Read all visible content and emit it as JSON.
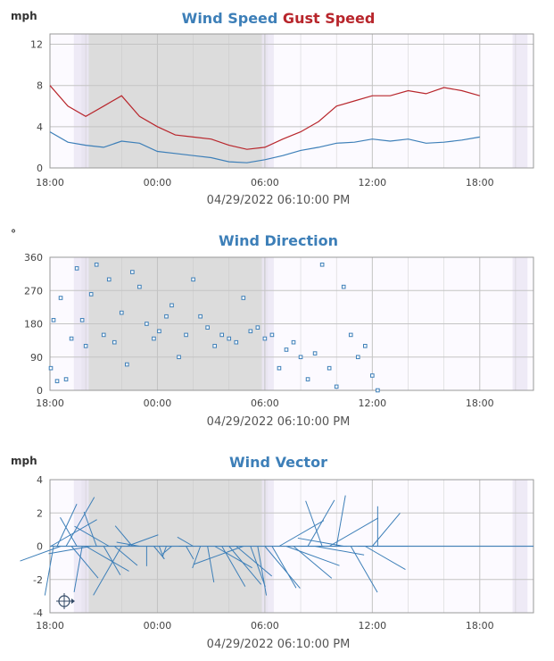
{
  "colors": {
    "wind": "#3d7fb8",
    "gust": "#b8262c",
    "night_fill": "#dcdcdc",
    "twilight": "#ebe6f5",
    "day_fill": "#fcfaff",
    "grid": "#c4c4c4",
    "axis_line": "#999999"
  },
  "x_axis": {
    "ticks": [
      "18:00",
      "00:00",
      "06:00",
      "12:00",
      "18:00"
    ],
    "tick_hours": [
      0,
      6,
      12,
      18,
      24
    ],
    "start": "04/28/2022 18:00",
    "end": "04/29/2022 21:00",
    "night": [
      "04/28/2022 19:45",
      "04/29/2022 06:10"
    ],
    "dawn": [
      "04/29/2022 05:50",
      "04/29/2022 06:30"
    ],
    "dusk_prev": [
      "04/28/2022 19:20",
      "04/28/2022 20:10"
    ],
    "dusk_next": [
      "04/29/2022 19:50",
      "04/29/2022 20:40"
    ]
  },
  "chart_data": [
    {
      "type": "line",
      "title_parts": [
        {
          "text": "Wind Speed",
          "color": "#3d7fb8"
        },
        {
          "text": "Gust Speed",
          "color": "#b8262c"
        }
      ],
      "ylabel": "mph",
      "ylim": [
        0,
        13
      ],
      "yticks": [
        0,
        4,
        8,
        12
      ],
      "ytick_labels": [
        "0",
        "4",
        "8",
        "12"
      ],
      "footer": "04/29/2022 06:10:00 PM",
      "series": [
        {
          "name": "Wind Speed",
          "color": "#3d7fb8",
          "x": [
            0,
            1,
            2,
            3,
            4,
            5,
            6,
            7,
            8,
            9,
            10,
            11,
            12,
            13,
            14,
            15,
            16,
            17,
            18,
            19,
            20,
            21,
            22,
            23,
            24
          ],
          "y": [
            3.5,
            2.5,
            2.2,
            2.0,
            2.6,
            2.4,
            1.6,
            1.4,
            1.2,
            1.0,
            0.6,
            0.5,
            0.8,
            1.2,
            1.7,
            2.0,
            2.4,
            2.5,
            2.8,
            2.6,
            2.8,
            2.4,
            2.5,
            2.7,
            3.0
          ]
        },
        {
          "name": "Gust Speed",
          "color": "#b8262c",
          "x": [
            0,
            1,
            2,
            3,
            4,
            5,
            6,
            7,
            8,
            9,
            10,
            11,
            12,
            13,
            14,
            15,
            16,
            17,
            18,
            19,
            20,
            21,
            22,
            23,
            24
          ],
          "y": [
            8.0,
            6.0,
            5.0,
            6.0,
            7.0,
            5.0,
            4.0,
            3.2,
            3.0,
            2.8,
            2.2,
            1.8,
            2.0,
            2.8,
            3.5,
            4.5,
            6.0,
            6.5,
            7.0,
            7.0,
            7.5,
            7.2,
            7.8,
            7.5,
            7.0
          ]
        }
      ]
    },
    {
      "type": "scatter",
      "title": "Wind Direction",
      "ylabel": "°",
      "ylim": [
        0,
        360
      ],
      "yticks": [
        0,
        90,
        180,
        270,
        360
      ],
      "ytick_labels": [
        "0",
        "90",
        "180",
        "270",
        "360"
      ],
      "footer": "04/29/2022 06:10:00 PM",
      "series": [
        {
          "color": "#3d7fb8",
          "x": [
            0.05,
            0.2,
            0.4,
            0.6,
            0.9,
            1.2,
            1.5,
            1.8,
            2.0,
            2.3,
            2.6,
            3.0,
            3.3,
            3.6,
            4.0,
            4.3,
            4.6,
            5.0,
            5.4,
            5.8,
            6.1,
            6.5,
            6.8,
            7.2,
            7.6,
            8.0,
            8.4,
            8.8,
            9.2,
            9.6,
            10.0,
            10.4,
            10.8,
            11.2,
            11.6,
            12.0,
            12.4,
            12.8,
            13.2,
            13.6,
            14.0,
            14.4,
            14.8,
            15.2,
            15.6,
            16.0,
            16.4,
            16.8,
            17.2,
            17.6,
            18.0,
            18.3
          ],
          "y": [
            60,
            190,
            25,
            250,
            30,
            140,
            330,
            190,
            120,
            260,
            340,
            150,
            300,
            130,
            210,
            70,
            320,
            280,
            180,
            140,
            160,
            200,
            230,
            90,
            150,
            300,
            200,
            170,
            120,
            150,
            140,
            130,
            250,
            160,
            170,
            140,
            150,
            60,
            110,
            130,
            90,
            30,
            100,
            340,
            60,
            10,
            280,
            150,
            90,
            120,
            40,
            0
          ]
        }
      ]
    },
    {
      "type": "line",
      "title": "Wind Vector",
      "ylabel": "mph",
      "ylim": [
        -4,
        4
      ],
      "yticks": [
        -4,
        -2,
        0,
        2,
        4
      ],
      "ytick_labels": [
        "-4",
        "-2",
        "0",
        "2",
        "4"
      ],
      "footer": "04/29/2022 06:10:00 PM",
      "series": [
        {
          "color": "#3d7fb8",
          "x": [
            0.05,
            0.2,
            0.4,
            0.6,
            0.9,
            1.2,
            1.5,
            1.8,
            2.0,
            2.3,
            2.6,
            3.0,
            3.3,
            3.6,
            4.0,
            4.3,
            4.6,
            5.0,
            5.4,
            5.8,
            6.1,
            6.5,
            6.8,
            7.2,
            7.6,
            8.0,
            8.4,
            8.8,
            9.2,
            9.6,
            10.0,
            10.4,
            10.8,
            11.2,
            11.6,
            12.0,
            12.4,
            12.8,
            13.2,
            13.6,
            14.0,
            14.4,
            14.8,
            15.2,
            15.6,
            16.0,
            16.4,
            16.8,
            17.2,
            17.6,
            18.0,
            18.3
          ],
          "speed": [
            3.2,
            3.0,
            2.8,
            2.6,
            3.4,
            2.5,
            2.0,
            2.8,
            3.0,
            2.6,
            2.2,
            2.0,
            2.4,
            1.8,
            3.4,
            2.0,
            1.6,
            1.4,
            1.2,
            1.0,
            0.8,
            0.6,
            0.7,
            0.6,
            0.9,
            1.1,
            1.4,
            2.2,
            2.6,
            2.8,
            3.0,
            2.8,
            3.2,
            2.6,
            3.0,
            3.3,
            2.9,
            3.1,
            3.4,
            3.0,
            2.8,
            3.2,
            3.0,
            2.9,
            3.4,
            3.1,
            2.8,
            3.2,
            3.0,
            2.8,
            2.6,
            2.4
          ],
          "direction": [
            60,
            190,
            25,
            250,
            30,
            140,
            330,
            190,
            120,
            260,
            340,
            150,
            300,
            130,
            210,
            70,
            320,
            280,
            180,
            140,
            160,
            200,
            230,
            90,
            150,
            300,
            200,
            170,
            120,
            150,
            140,
            130,
            250,
            160,
            170,
            140,
            150,
            60,
            110,
            130,
            90,
            30,
            100,
            340,
            60,
            10,
            280,
            150,
            90,
            120,
            40,
            0
          ]
        }
      ],
      "compass_legend": true
    }
  ]
}
